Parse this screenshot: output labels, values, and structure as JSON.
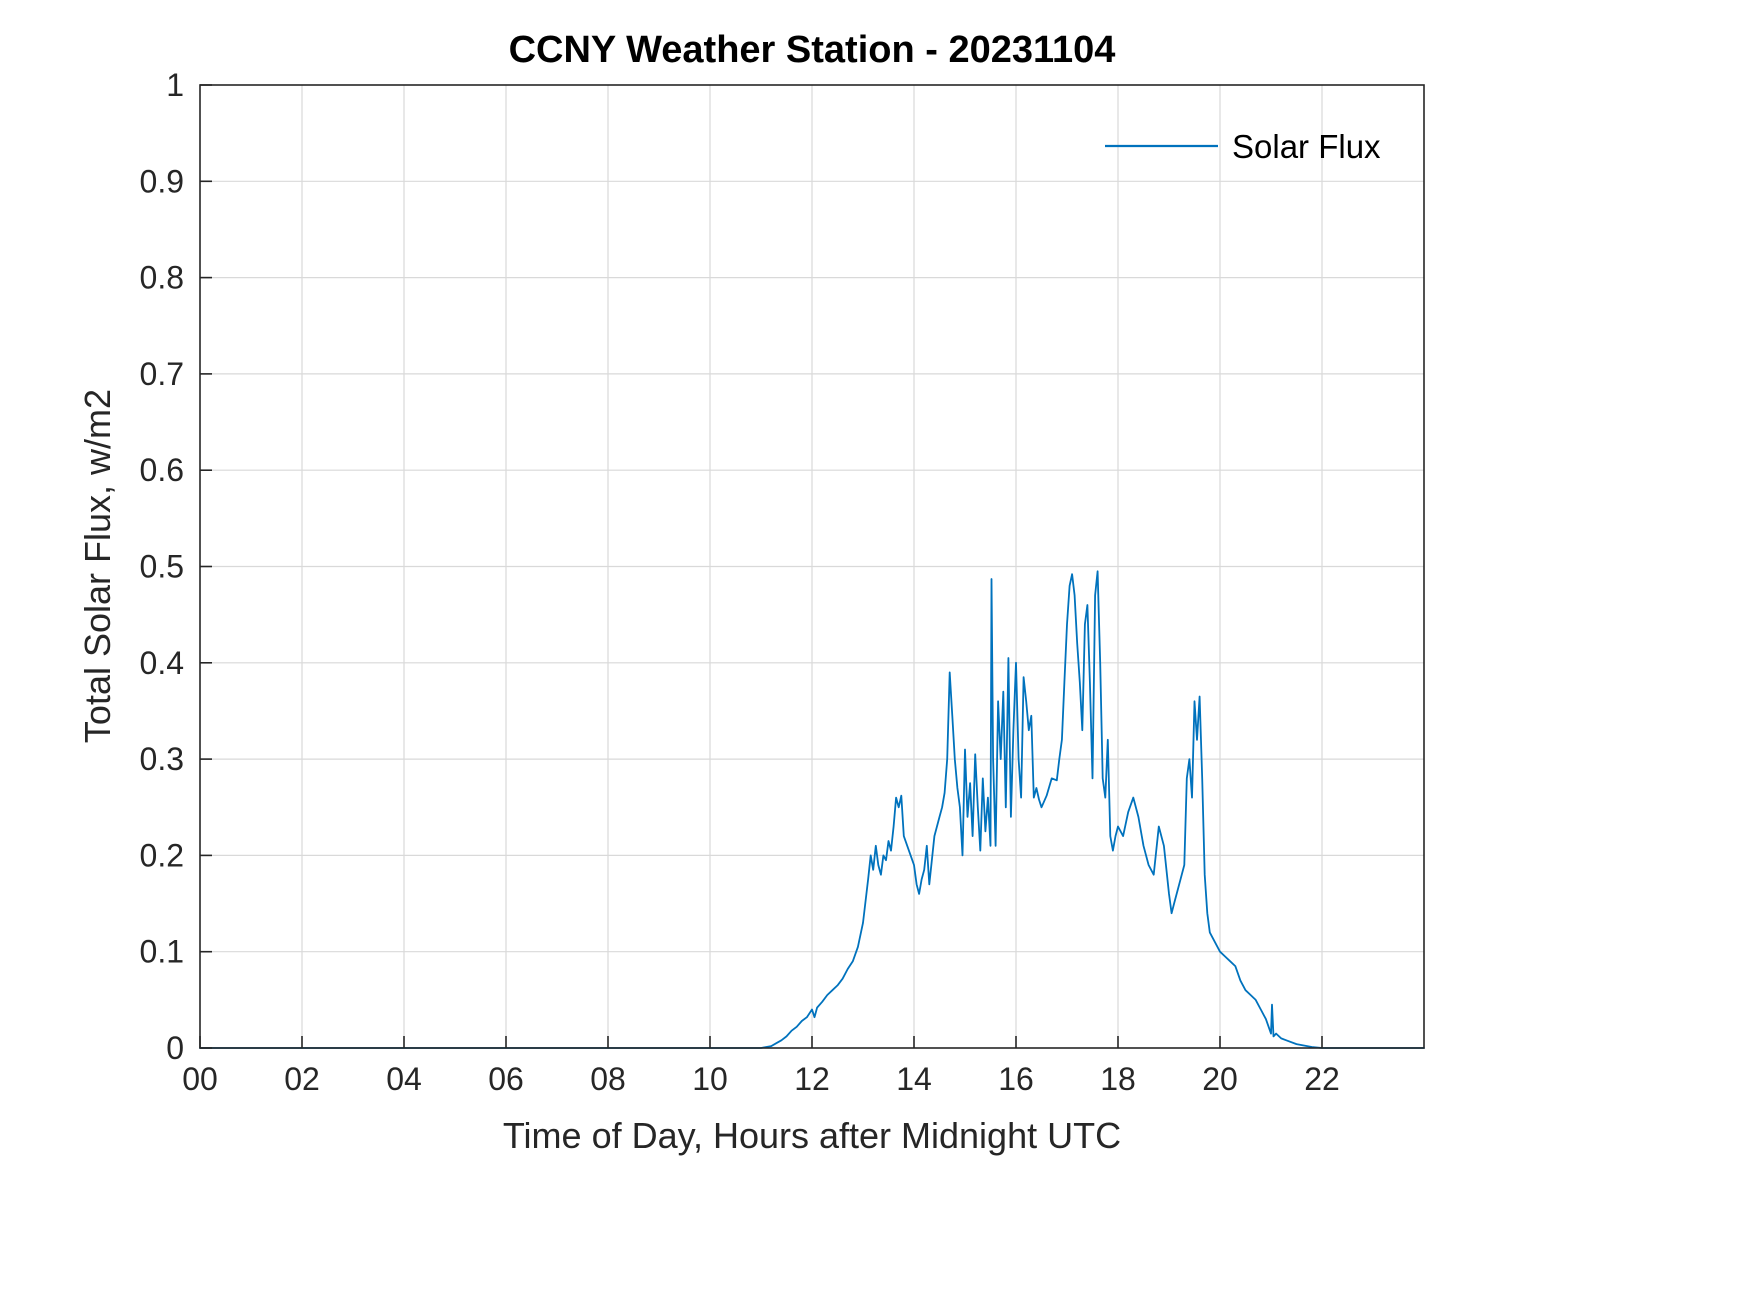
{
  "chart_data": {
    "type": "line",
    "title": "CCNY Weather Station - 20231104",
    "xlabel": "Time of Day, Hours after Midnight UTC",
    "ylabel": "Total Solar Flux, w/m2",
    "xlim": [
      0,
      24
    ],
    "ylim": [
      0,
      1
    ],
    "grid": true,
    "legend_position": "northeast",
    "axis_color": "#262626",
    "grid_color": "#d9d9d9",
    "xticks": [
      {
        "v": 0,
        "label": "00"
      },
      {
        "v": 2,
        "label": "02"
      },
      {
        "v": 4,
        "label": "04"
      },
      {
        "v": 6,
        "label": "06"
      },
      {
        "v": 8,
        "label": "08"
      },
      {
        "v": 10,
        "label": "10"
      },
      {
        "v": 12,
        "label": "12"
      },
      {
        "v": 14,
        "label": "14"
      },
      {
        "v": 16,
        "label": "16"
      },
      {
        "v": 18,
        "label": "18"
      },
      {
        "v": 20,
        "label": "20"
      },
      {
        "v": 22,
        "label": "22"
      }
    ],
    "yticks": [
      {
        "v": 0,
        "label": "0"
      },
      {
        "v": 0.1,
        "label": "0.1"
      },
      {
        "v": 0.2,
        "label": "0.2"
      },
      {
        "v": 0.3,
        "label": "0.3"
      },
      {
        "v": 0.4,
        "label": "0.4"
      },
      {
        "v": 0.5,
        "label": "0.5"
      },
      {
        "v": 0.6,
        "label": "0.6"
      },
      {
        "v": 0.7,
        "label": "0.7"
      },
      {
        "v": 0.8,
        "label": "0.8"
      },
      {
        "v": 0.9,
        "label": "0.9"
      },
      {
        "v": 1,
        "label": "1"
      }
    ],
    "series": [
      {
        "name": "Solar Flux",
        "color": "#0072BD",
        "points": [
          [
            0,
            0
          ],
          [
            10.5,
            0
          ],
          [
            11.0,
            0
          ],
          [
            11.2,
            0.002
          ],
          [
            11.3,
            0.005
          ],
          [
            11.4,
            0.008
          ],
          [
            11.5,
            0.012
          ],
          [
            11.6,
            0.018
          ],
          [
            11.7,
            0.022
          ],
          [
            11.8,
            0.028
          ],
          [
            11.9,
            0.032
          ],
          [
            12.0,
            0.04
          ],
          [
            12.05,
            0.032
          ],
          [
            12.1,
            0.042
          ],
          [
            12.2,
            0.048
          ],
          [
            12.3,
            0.055
          ],
          [
            12.4,
            0.06
          ],
          [
            12.5,
            0.065
          ],
          [
            12.6,
            0.072
          ],
          [
            12.7,
            0.082
          ],
          [
            12.8,
            0.09
          ],
          [
            12.9,
            0.105
          ],
          [
            13.0,
            0.13
          ],
          [
            13.1,
            0.175
          ],
          [
            13.15,
            0.2
          ],
          [
            13.2,
            0.185
          ],
          [
            13.25,
            0.21
          ],
          [
            13.3,
            0.19
          ],
          [
            13.35,
            0.18
          ],
          [
            13.4,
            0.2
          ],
          [
            13.45,
            0.195
          ],
          [
            13.5,
            0.215
          ],
          [
            13.55,
            0.205
          ],
          [
            13.6,
            0.23
          ],
          [
            13.65,
            0.26
          ],
          [
            13.7,
            0.25
          ],
          [
            13.75,
            0.262
          ],
          [
            13.8,
            0.22
          ],
          [
            13.9,
            0.205
          ],
          [
            14.0,
            0.19
          ],
          [
            14.05,
            0.17
          ],
          [
            14.1,
            0.16
          ],
          [
            14.15,
            0.175
          ],
          [
            14.2,
            0.185
          ],
          [
            14.25,
            0.21
          ],
          [
            14.3,
            0.17
          ],
          [
            14.4,
            0.22
          ],
          [
            14.5,
            0.24
          ],
          [
            14.55,
            0.25
          ],
          [
            14.6,
            0.265
          ],
          [
            14.65,
            0.3
          ],
          [
            14.7,
            0.39
          ],
          [
            14.75,
            0.345
          ],
          [
            14.8,
            0.3
          ],
          [
            14.85,
            0.27
          ],
          [
            14.9,
            0.25
          ],
          [
            14.95,
            0.2
          ],
          [
            15.0,
            0.31
          ],
          [
            15.05,
            0.24
          ],
          [
            15.1,
            0.275
          ],
          [
            15.15,
            0.22
          ],
          [
            15.2,
            0.305
          ],
          [
            15.25,
            0.25
          ],
          [
            15.3,
            0.205
          ],
          [
            15.35,
            0.28
          ],
          [
            15.4,
            0.225
          ],
          [
            15.45,
            0.26
          ],
          [
            15.5,
            0.21
          ],
          [
            15.52,
            0.487
          ],
          [
            15.55,
            0.3
          ],
          [
            15.6,
            0.21
          ],
          [
            15.65,
            0.36
          ],
          [
            15.7,
            0.3
          ],
          [
            15.75,
            0.37
          ],
          [
            15.8,
            0.25
          ],
          [
            15.85,
            0.405
          ],
          [
            15.9,
            0.24
          ],
          [
            15.95,
            0.33
          ],
          [
            16.0,
            0.4
          ],
          [
            16.05,
            0.3
          ],
          [
            16.1,
            0.26
          ],
          [
            16.15,
            0.385
          ],
          [
            16.2,
            0.36
          ],
          [
            16.25,
            0.33
          ],
          [
            16.3,
            0.345
          ],
          [
            16.35,
            0.26
          ],
          [
            16.4,
            0.27
          ],
          [
            16.45,
            0.258
          ],
          [
            16.5,
            0.25
          ],
          [
            16.6,
            0.262
          ],
          [
            16.7,
            0.28
          ],
          [
            16.8,
            0.278
          ],
          [
            16.85,
            0.3
          ],
          [
            16.9,
            0.32
          ],
          [
            16.95,
            0.38
          ],
          [
            17.0,
            0.44
          ],
          [
            17.05,
            0.48
          ],
          [
            17.1,
            0.492
          ],
          [
            17.15,
            0.47
          ],
          [
            17.2,
            0.42
          ],
          [
            17.25,
            0.38
          ],
          [
            17.3,
            0.33
          ],
          [
            17.35,
            0.44
          ],
          [
            17.4,
            0.46
          ],
          [
            17.45,
            0.38
          ],
          [
            17.5,
            0.28
          ],
          [
            17.55,
            0.47
          ],
          [
            17.6,
            0.495
          ],
          [
            17.65,
            0.4
          ],
          [
            17.7,
            0.28
          ],
          [
            17.75,
            0.26
          ],
          [
            17.8,
            0.32
          ],
          [
            17.85,
            0.22
          ],
          [
            17.9,
            0.205
          ],
          [
            17.95,
            0.22
          ],
          [
            18.0,
            0.23
          ],
          [
            18.1,
            0.22
          ],
          [
            18.2,
            0.245
          ],
          [
            18.3,
            0.26
          ],
          [
            18.4,
            0.24
          ],
          [
            18.5,
            0.21
          ],
          [
            18.6,
            0.19
          ],
          [
            18.7,
            0.18
          ],
          [
            18.8,
            0.23
          ],
          [
            18.9,
            0.21
          ],
          [
            19.0,
            0.16
          ],
          [
            19.05,
            0.14
          ],
          [
            19.1,
            0.15
          ],
          [
            19.2,
            0.17
          ],
          [
            19.3,
            0.19
          ],
          [
            19.35,
            0.28
          ],
          [
            19.4,
            0.3
          ],
          [
            19.45,
            0.26
          ],
          [
            19.5,
            0.36
          ],
          [
            19.55,
            0.32
          ],
          [
            19.6,
            0.365
          ],
          [
            19.65,
            0.28
          ],
          [
            19.7,
            0.18
          ],
          [
            19.75,
            0.14
          ],
          [
            19.8,
            0.12
          ],
          [
            19.9,
            0.11
          ],
          [
            20.0,
            0.1
          ],
          [
            20.1,
            0.095
          ],
          [
            20.2,
            0.09
          ],
          [
            20.3,
            0.085
          ],
          [
            20.4,
            0.07
          ],
          [
            20.5,
            0.06
          ],
          [
            20.6,
            0.055
          ],
          [
            20.7,
            0.05
          ],
          [
            20.8,
            0.04
          ],
          [
            20.9,
            0.03
          ],
          [
            21.0,
            0.015
          ],
          [
            21.02,
            0.045
          ],
          [
            21.05,
            0.012
          ],
          [
            21.1,
            0.015
          ],
          [
            21.2,
            0.01
          ],
          [
            21.3,
            0.008
          ],
          [
            21.5,
            0.004
          ],
          [
            21.8,
            0.001
          ],
          [
            22.0,
            0
          ],
          [
            23.0,
            0
          ],
          [
            24.0,
            0
          ]
        ]
      }
    ]
  }
}
